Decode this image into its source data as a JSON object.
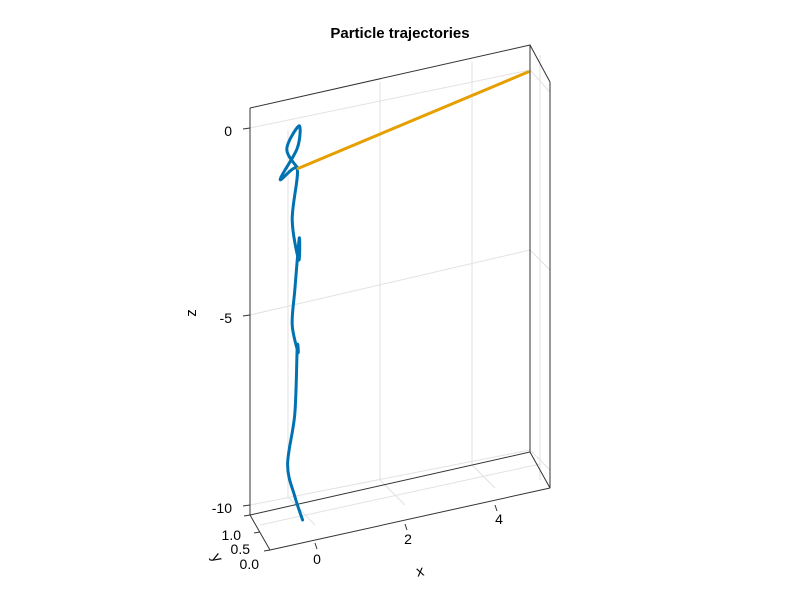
{
  "chart_data": {
    "type": "line",
    "title": "Particle trajectories",
    "xlabel": "x",
    "ylabel": "y",
    "zlabel": "z",
    "xlim": [
      -0.6,
      5.0
    ],
    "ylim": [
      0.0,
      1.0
    ],
    "zlim": [
      -10.3,
      0.4
    ],
    "x_ticks": [
      "0",
      "2",
      "4"
    ],
    "y_ticks": [
      "0.0",
      "0.5",
      "1.0"
    ],
    "z_ticks": [
      "-10",
      "-5",
      "0"
    ],
    "grid": true,
    "series": [
      {
        "color": "#0072b2",
        "description": "helix",
        "points": [
          [
            0.0,
            0.5,
            -0.6
          ],
          [
            -0.2,
            0.6,
            -0.12
          ],
          [
            0.2,
            0.9,
            0.1
          ],
          [
            0.2,
            1.0,
            -0.6
          ],
          [
            -0.3,
            0.7,
            -1.0
          ],
          [
            0.2,
            1.0,
            -1.15
          ],
          [
            -0.3,
            0.1,
            -1.5
          ],
          [
            -0.2,
            0.0,
            -2.5
          ],
          [
            0.2,
            0.9,
            -2.9
          ],
          [
            -0.2,
            0.2,
            -3.5
          ],
          [
            -0.3,
            0.1,
            -4.3
          ],
          [
            0.0,
            0.5,
            -5.5
          ],
          [
            0.2,
            1.0,
            -5.9
          ],
          [
            -0.2,
            0.2,
            -6.8
          ],
          [
            -0.4,
            0.1,
            -8.0
          ],
          [
            -0.2,
            0.2,
            -9.0
          ],
          [
            0.1,
            0.5,
            -10.0
          ]
        ]
      },
      {
        "color": "#e69f00",
        "description": "straight line",
        "points": [
          [
            0.0,
            0.5,
            -0.6
          ],
          [
            5.0,
            0.5,
            0.6
          ]
        ]
      }
    ]
  }
}
